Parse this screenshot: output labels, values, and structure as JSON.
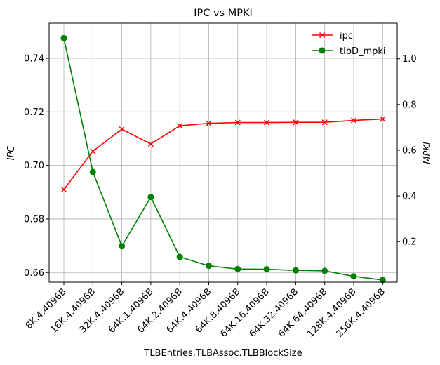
{
  "chart_data": {
    "type": "line",
    "title": "IPC vs MPKI",
    "xlabel": "TLBEntries.TLBAssoc.TLBBlockSize",
    "ylabel_left": "IPC",
    "ylabel_right": "MPKI",
    "categories": [
      "8K.4.4096B",
      "16K.4.4096B",
      "32K.4.4096B",
      "64K.1.4096B",
      "64K.2.4096B",
      "64K.4.4096B",
      "64K.8.4096B",
      "64K.16.4096B",
      "64K.32.4096B",
      "64K.64.4096B",
      "128K.4.4096B",
      "256K.4.4096B"
    ],
    "ylim_left": [
      0.6564,
      0.7531
    ],
    "ylim_right": [
      0.0225,
      1.1558
    ],
    "yticks_left": [
      0.66,
      0.68,
      0.7,
      0.72,
      0.74
    ],
    "yticks_left_labels": [
      "0.66",
      "0.68",
      "0.70",
      "0.72",
      "0.74"
    ],
    "yticks_right": [
      0.2,
      0.4,
      0.6,
      0.8,
      1.0
    ],
    "yticks_right_labels": [
      "0.2",
      "0.4",
      "0.6",
      "0.8",
      "1.0"
    ],
    "grid": true,
    "legend_position": "top-right",
    "series": [
      {
        "name": "ipc",
        "axis": "left",
        "color": "#ff0000",
        "marker": "x",
        "values": [
          0.691,
          0.7053,
          0.7135,
          0.708,
          0.7148,
          0.7157,
          0.716,
          0.716,
          0.7161,
          0.7161,
          0.7168,
          0.7173
        ]
      },
      {
        "name": "tlbD_mpki",
        "axis": "right",
        "color": "#008000",
        "marker": "o",
        "values": [
          1.09,
          0.505,
          0.18,
          0.395,
          0.133,
          0.094,
          0.08,
          0.079,
          0.074,
          0.072,
          0.048,
          0.032
        ]
      }
    ]
  }
}
